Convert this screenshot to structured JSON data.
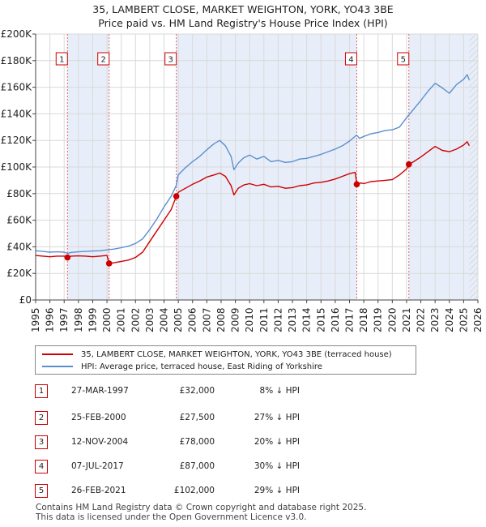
{
  "title": {
    "line1": "35, LAMBERT CLOSE, MARKET WEIGHTON, YORK, YO43 3BE",
    "line2": "Price paid vs. HM Land Registry's House Price Index (HPI)"
  },
  "chart_data": {
    "type": "line",
    "xlim": [
      1995,
      2026
    ],
    "ylim": [
      0,
      200000
    ],
    "x_ticks": [
      1995,
      1996,
      1997,
      1998,
      1999,
      2000,
      2001,
      2002,
      2003,
      2004,
      2005,
      2006,
      2007,
      2008,
      2009,
      2010,
      2011,
      2012,
      2013,
      2014,
      2015,
      2016,
      2017,
      2018,
      2019,
      2020,
      2021,
      2022,
      2023,
      2024,
      2025,
      2026
    ],
    "y_ticks": [
      {
        "value": 0,
        "label": "£0"
      },
      {
        "value": 20000,
        "label": "£20K"
      },
      {
        "value": 40000,
        "label": "£40K"
      },
      {
        "value": 60000,
        "label": "£60K"
      },
      {
        "value": 80000,
        "label": "£80K"
      },
      {
        "value": 100000,
        "label": "£100K"
      },
      {
        "value": 120000,
        "label": "£120K"
      },
      {
        "value": 140000,
        "label": "£140K"
      },
      {
        "value": 160000,
        "label": "£160K"
      },
      {
        "value": 180000,
        "label": "£180K"
      },
      {
        "value": 200000,
        "label": "£200K"
      }
    ],
    "grid": true,
    "hpi_series": {
      "name": "HPI: Average price, terraced house, East Riding of Yorkshire",
      "color": "#5b8fcf",
      "points": [
        [
          1995.0,
          37000
        ],
        [
          1995.5,
          36500
        ],
        [
          1996.0,
          36000
        ],
        [
          1996.5,
          36200
        ],
        [
          1997.0,
          36000
        ],
        [
          1997.25,
          35000
        ],
        [
          1997.5,
          35800
        ],
        [
          1998.0,
          36200
        ],
        [
          1998.5,
          36500
        ],
        [
          1999.0,
          36800
        ],
        [
          1999.5,
          37000
        ],
        [
          2000.0,
          37700
        ],
        [
          2000.5,
          38300
        ],
        [
          2001.0,
          39300
        ],
        [
          2001.5,
          40500
        ],
        [
          2002.0,
          42500
        ],
        [
          2002.5,
          46000
        ],
        [
          2003.0,
          53000
        ],
        [
          2003.5,
          61000
        ],
        [
          2004.0,
          70000
        ],
        [
          2004.5,
          78000
        ],
        [
          2004.85,
          86000
        ],
        [
          2005.0,
          94000
        ],
        [
          2005.5,
          99500
        ],
        [
          2006.0,
          104000
        ],
        [
          2006.5,
          108000
        ],
        [
          2007.0,
          113000
        ],
        [
          2007.5,
          117500
        ],
        [
          2007.9,
          120000
        ],
        [
          2008.3,
          116000
        ],
        [
          2008.7,
          108000
        ],
        [
          2008.9,
          98000
        ],
        [
          2009.2,
          103000
        ],
        [
          2009.6,
          107000
        ],
        [
          2010.0,
          109000
        ],
        [
          2010.5,
          106000
        ],
        [
          2011.0,
          108000
        ],
        [
          2011.5,
          104000
        ],
        [
          2012.0,
          105000
        ],
        [
          2012.5,
          103500
        ],
        [
          2013.0,
          104000
        ],
        [
          2013.5,
          106000
        ],
        [
          2014.0,
          106500
        ],
        [
          2014.5,
          108000
        ],
        [
          2015.0,
          109500
        ],
        [
          2015.5,
          111500
        ],
        [
          2016.0,
          113500
        ],
        [
          2016.5,
          116000
        ],
        [
          2017.0,
          119500
        ],
        [
          2017.5,
          124000
        ],
        [
          2017.7,
          121500
        ],
        [
          2018.0,
          123000
        ],
        [
          2018.5,
          125000
        ],
        [
          2019.0,
          126000
        ],
        [
          2019.5,
          127500
        ],
        [
          2020.0,
          128000
        ],
        [
          2020.5,
          130000
        ],
        [
          2021.0,
          137000
        ],
        [
          2021.5,
          143500
        ],
        [
          2022.0,
          150000
        ],
        [
          2022.5,
          157000
        ],
        [
          2023.0,
          163000
        ],
        [
          2023.5,
          159500
        ],
        [
          2024.0,
          155500
        ],
        [
          2024.5,
          162000
        ],
        [
          2025.0,
          166000
        ],
        [
          2025.25,
          169500
        ],
        [
          2025.4,
          165500
        ]
      ]
    },
    "price_series": {
      "name": "35, LAMBERT CLOSE, MARKET WEIGHTON, YORK, YO43 3BE (terraced house)",
      "color": "#cc0000",
      "points": [
        [
          1995.0,
          33500
        ],
        [
          1995.5,
          33000
        ],
        [
          1996.0,
          32500
        ],
        [
          1996.5,
          33000
        ],
        [
          1997.0,
          33000
        ],
        [
          1997.23,
          32000
        ],
        [
          1997.5,
          33000
        ],
        [
          1998.0,
          33200
        ],
        [
          1998.5,
          33000
        ],
        [
          1999.0,
          32500
        ],
        [
          1999.5,
          33000
        ],
        [
          2000.0,
          33500
        ],
        [
          2000.15,
          27500
        ],
        [
          2000.5,
          28000
        ],
        [
          2001.0,
          29000
        ],
        [
          2001.5,
          30000
        ],
        [
          2002.0,
          32000
        ],
        [
          2002.5,
          36000
        ],
        [
          2003.0,
          44000
        ],
        [
          2003.5,
          52000
        ],
        [
          2004.0,
          60000
        ],
        [
          2004.5,
          68000
        ],
        [
          2004.86,
          78000
        ],
        [
          2005.0,
          81000
        ],
        [
          2005.5,
          84000
        ],
        [
          2006.0,
          87000
        ],
        [
          2006.5,
          89500
        ],
        [
          2007.0,
          92500
        ],
        [
          2007.5,
          94000
        ],
        [
          2007.9,
          95500
        ],
        [
          2008.3,
          93000
        ],
        [
          2008.7,
          86000
        ],
        [
          2008.9,
          79000
        ],
        [
          2009.2,
          84000
        ],
        [
          2009.6,
          86500
        ],
        [
          2010.0,
          87500
        ],
        [
          2010.5,
          86000
        ],
        [
          2011.0,
          87000
        ],
        [
          2011.5,
          85000
        ],
        [
          2012.0,
          85500
        ],
        [
          2012.5,
          84000
        ],
        [
          2013.0,
          84500
        ],
        [
          2013.5,
          86000
        ],
        [
          2014.0,
          86500
        ],
        [
          2014.5,
          88000
        ],
        [
          2015.0,
          88500
        ],
        [
          2015.5,
          89500
        ],
        [
          2016.0,
          91000
        ],
        [
          2016.5,
          93000
        ],
        [
          2017.0,
          95000
        ],
        [
          2017.4,
          96000
        ],
        [
          2017.51,
          87000
        ],
        [
          2017.8,
          88000
        ],
        [
          2018.0,
          87500
        ],
        [
          2018.5,
          89000
        ],
        [
          2019.0,
          89500
        ],
        [
          2019.5,
          90000
        ],
        [
          2020.0,
          90500
        ],
        [
          2020.5,
          94000
        ],
        [
          2021.0,
          98500
        ],
        [
          2021.16,
          102000
        ],
        [
          2021.5,
          104000
        ],
        [
          2022.0,
          107500
        ],
        [
          2022.5,
          111500
        ],
        [
          2023.0,
          115500
        ],
        [
          2023.5,
          112500
        ],
        [
          2024.0,
          111500
        ],
        [
          2024.5,
          113500
        ],
        [
          2025.0,
          116500
        ],
        [
          2025.25,
          119000
        ],
        [
          2025.4,
          116000
        ]
      ]
    },
    "transactions": [
      {
        "id": "1",
        "label": "1",
        "x": 1997.23,
        "price": 32000,
        "date": "27-MAR-1997",
        "price_label": "£32,000",
        "hpi": "8% ↓ HPI"
      },
      {
        "id": "2",
        "label": "2",
        "x": 2000.15,
        "price": 27500,
        "date": "25-FEB-2000",
        "price_label": "£27,500",
        "hpi": "27% ↓ HPI"
      },
      {
        "id": "3",
        "label": "3",
        "x": 2004.86,
        "price": 78000,
        "date": "12-NOV-2004",
        "price_label": "£78,000",
        "hpi": "20% ↓ HPI"
      },
      {
        "id": "4",
        "label": "4",
        "x": 2017.51,
        "price": 87000,
        "date": "07-JUL-2017",
        "price_label": "£87,000",
        "hpi": "30% ↓ HPI"
      },
      {
        "id": "5",
        "label": "5",
        "x": 2021.16,
        "price": 102000,
        "date": "26-FEB-2021",
        "price_label": "£102,000",
        "hpi": "29% ↓ HPI"
      }
    ],
    "shaded_spans": [
      [
        1997.23,
        2000.15
      ],
      [
        2004.86,
        2017.51
      ],
      [
        2021.16,
        2026
      ]
    ],
    "hatch_from": 2025.4,
    "colors": {
      "shade": "#e8eef9",
      "grid": "#d9d9d9",
      "vline": "#e06666",
      "marker": "#cc0000"
    }
  },
  "legend": {
    "property_label": "35, LAMBERT CLOSE, MARKET WEIGHTON, YORK, YO43 3BE (terraced house)",
    "hpi_label": "HPI: Average price, terraced house, East Riding of Yorkshire"
  },
  "footer": {
    "line1": "Contains HM Land Registry data © Crown copyright and database right 2025.",
    "line2": "This data is licensed under the Open Government Licence v3.0."
  }
}
